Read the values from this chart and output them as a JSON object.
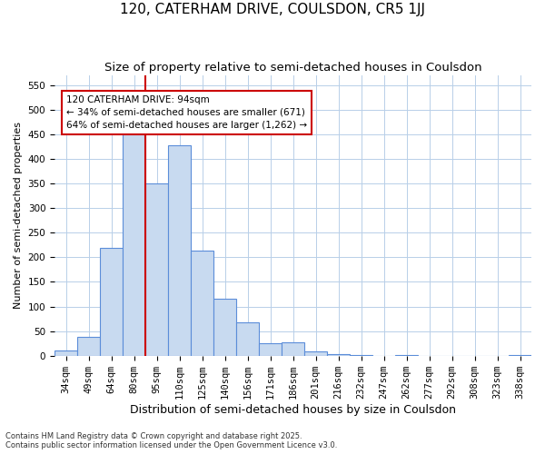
{
  "title1": "120, CATERHAM DRIVE, COULSDON, CR5 1JJ",
  "title2": "Size of property relative to semi-detached houses in Coulsdon",
  "xlabel": "Distribution of semi-detached houses by size in Coulsdon",
  "ylabel": "Number of semi-detached properties",
  "categories": [
    "34sqm",
    "49sqm",
    "64sqm",
    "80sqm",
    "95sqm",
    "110sqm",
    "125sqm",
    "140sqm",
    "156sqm",
    "171sqm",
    "186sqm",
    "201sqm",
    "216sqm",
    "232sqm",
    "247sqm",
    "262sqm",
    "277sqm",
    "292sqm",
    "308sqm",
    "323sqm",
    "338sqm"
  ],
  "values": [
    10,
    38,
    220,
    455,
    350,
    428,
    213,
    115,
    68,
    26,
    28,
    8,
    3,
    2,
    0,
    1,
    0,
    0,
    0,
    0,
    2
  ],
  "bar_color": "#c8daf0",
  "bar_edge_color": "#5b8dd9",
  "red_line_x": 3.5,
  "annotation_title": "120 CATERHAM DRIVE: 94sqm",
  "annotation_line1": "← 34% of semi-detached houses are smaller (671)",
  "annotation_line2": "64% of semi-detached houses are larger (1,262) →",
  "annotation_box_facecolor": "#ffffff",
  "annotation_box_edgecolor": "#cc0000",
  "ylim": [
    0,
    570
  ],
  "yticks": [
    0,
    50,
    100,
    150,
    200,
    250,
    300,
    350,
    400,
    450,
    500,
    550
  ],
  "fig_bg_color": "#ffffff",
  "plot_bg_color": "#ffffff",
  "grid_color": "#b8cfe8",
  "title1_fontsize": 11,
  "title2_fontsize": 9.5,
  "ylabel_fontsize": 8,
  "xlabel_fontsize": 9,
  "tick_fontsize": 7.5,
  "footnote1": "Contains HM Land Registry data © Crown copyright and database right 2025.",
  "footnote2": "Contains public sector information licensed under the Open Government Licence v3.0."
}
